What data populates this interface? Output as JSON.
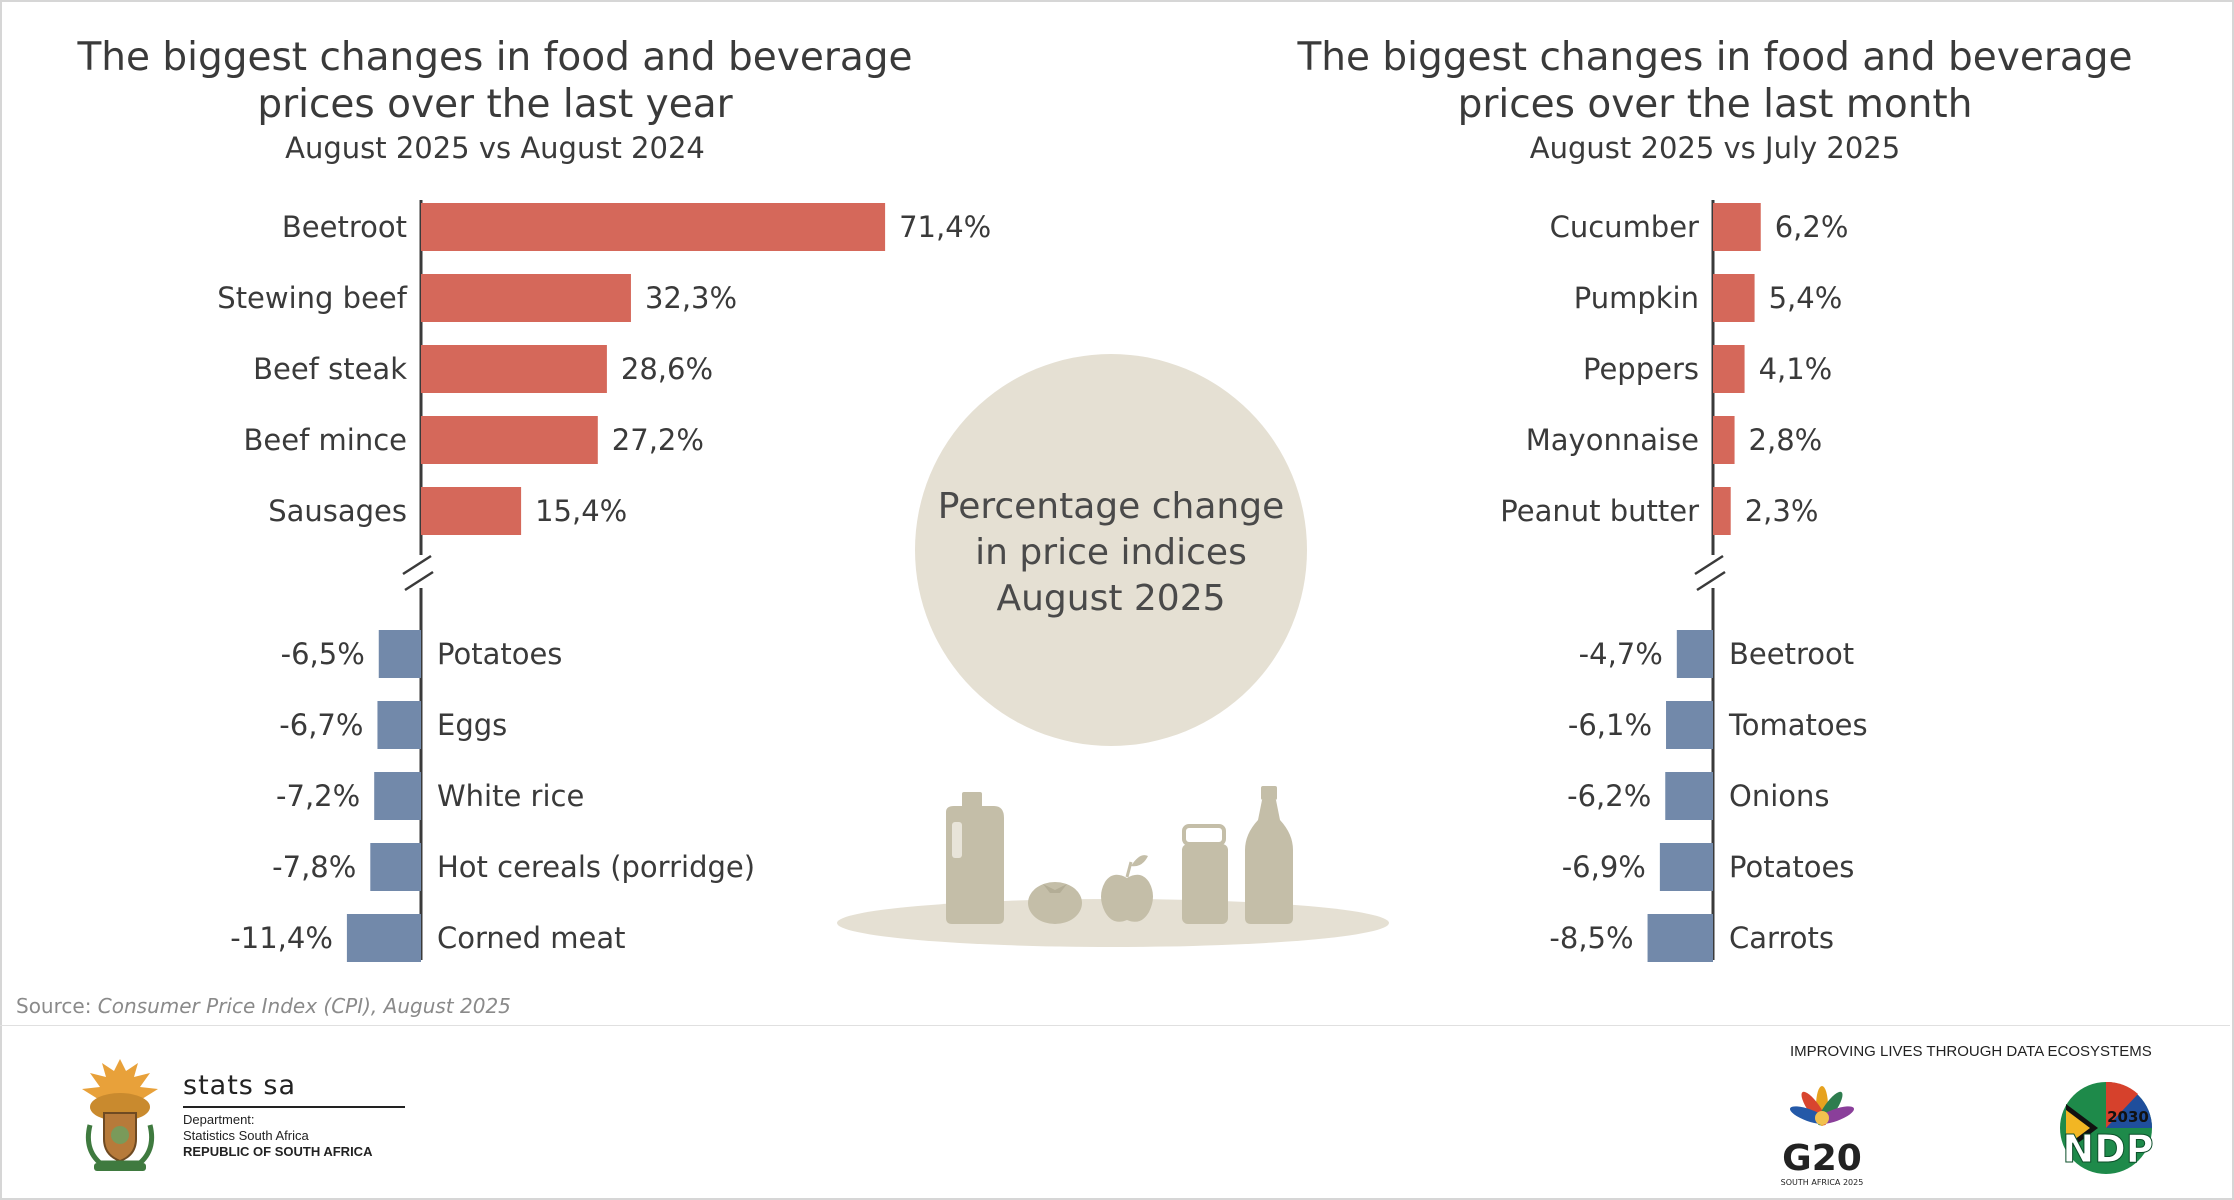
{
  "colors": {
    "positive": "#d5685a",
    "negative": "#7289aa",
    "axis": "#3a3a3a",
    "beige": "#e5e0d3",
    "item": "#c4bea8"
  },
  "left": {
    "title_line1": "The biggest changes in food and beverage",
    "title_line2": "prices over the last year",
    "subtitle": "August 2025 vs August 2024"
  },
  "right": {
    "title_line1": "The biggest changes in food and beverage",
    "title_line2": "prices over the last month",
    "subtitle": "August 2025 vs July 2025"
  },
  "center": {
    "line1": "Percentage change",
    "line2": "in price indices",
    "line3": "August 2025"
  },
  "chart_data": [
    {
      "type": "bar",
      "orientation": "horizontal",
      "title": "The biggest changes in food and beverage prices over the last year",
      "subtitle": "August 2025 vs August 2024",
      "axis_break": true,
      "categories": [
        "Beetroot",
        "Stewing beef",
        "Beef steak",
        "Beef mince",
        "Sausages",
        "Potatoes",
        "Eggs",
        "White rice",
        "Hot cereals (porridge)",
        "Corned meat"
      ],
      "values": [
        71.4,
        32.3,
        28.6,
        27.2,
        15.4,
        -6.5,
        -6.7,
        -7.2,
        -7.8,
        -11.4
      ],
      "labels": [
        "71,4%",
        "32,3%",
        "28,6%",
        "27,2%",
        "15,4%",
        "-6,5%",
        "-6,7%",
        "-7,2%",
        "-7,8%",
        "-11,4%"
      ]
    },
    {
      "type": "bar",
      "orientation": "horizontal",
      "title": "The biggest changes in food and beverage prices over the last month",
      "subtitle": "August 2025 vs July 2025",
      "axis_break": true,
      "categories": [
        "Cucumber",
        "Pumpkin",
        "Peppers",
        "Mayonnaise",
        "Peanut butter",
        "Beetroot",
        "Tomatoes",
        "Onions",
        "Potatoes",
        "Carrots"
      ],
      "values": [
        6.2,
        5.4,
        4.1,
        2.8,
        2.3,
        -4.7,
        -6.1,
        -6.2,
        -6.9,
        -8.5
      ],
      "labels": [
        "6,2%",
        "5,4%",
        "4,1%",
        "2,8%",
        "2,3%",
        "-4,7%",
        "-6,1%",
        "-6,2%",
        "-6,9%",
        "-8,5%"
      ]
    }
  ],
  "source": {
    "prefix": "Source:",
    "text": "Consumer Price Index (CPI), August 2025"
  },
  "footer": {
    "brand": "stats sa",
    "dept_line1": "Department:",
    "dept_line2": "Statistics South Africa",
    "dept_line3": "REPUBLIC OF SOUTH AFRICA",
    "tagline": "IMPROVING LIVES THROUGH DATA ECOSYSTEMS",
    "g20": "G20",
    "g20_sub": "SOUTH AFRICA 2025",
    "ndp": "NDP",
    "ndp_year": "2030"
  }
}
